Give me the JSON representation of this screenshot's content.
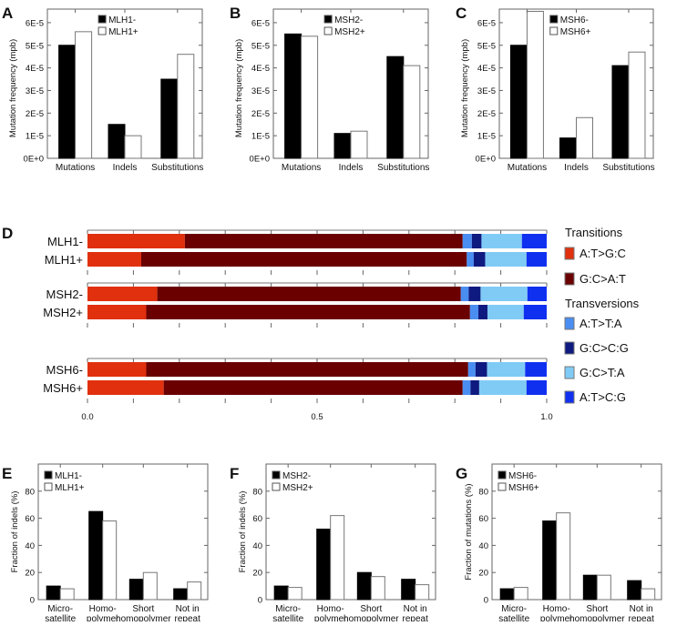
{
  "panel_labels": [
    "A",
    "B",
    "C",
    "D",
    "E",
    "F",
    "G"
  ],
  "chart_data": [
    {
      "panel": "A",
      "type": "bar",
      "ylabel": "Mutation frequency (mpb)",
      "categories": [
        "Mutations",
        "Indels",
        "Substitutions"
      ],
      "series": [
        {
          "name": "MLH1-",
          "color": "#000000",
          "values": [
            5e-05,
            1.5e-05,
            3.5e-05
          ]
        },
        {
          "name": "MLH1+",
          "color": "#ffffff",
          "values": [
            5.6e-05,
            1e-05,
            4.6e-05
          ]
        }
      ],
      "yticks": [
        "0E+0",
        "1E-5",
        "2E-5",
        "3E-5",
        "4E-5",
        "5E-5",
        "6E-5"
      ],
      "ylim": [
        0,
        6.6e-05
      ],
      "legend": "top-center"
    },
    {
      "panel": "B",
      "type": "bar",
      "ylabel": "Mutation frequency (mpb)",
      "categories": [
        "Mutations",
        "Indels",
        "Substitutions"
      ],
      "series": [
        {
          "name": "MSH2-",
          "color": "#000000",
          "values": [
            5.5e-05,
            1.1e-05,
            4.5e-05
          ]
        },
        {
          "name": "MSH2+",
          "color": "#ffffff",
          "values": [
            5.4e-05,
            1.2e-05,
            4.1e-05
          ]
        }
      ],
      "yticks": [
        "0E+0",
        "1E-5",
        "2E-5",
        "3E-5",
        "4E-5",
        "5E-5",
        "6E-5"
      ],
      "ylim": [
        0,
        6.6e-05
      ],
      "legend": "top-center"
    },
    {
      "panel": "C",
      "type": "bar",
      "ylabel": "Mutation frequency (mpb)",
      "categories": [
        "Mutations",
        "Indels",
        "Substitutions"
      ],
      "series": [
        {
          "name": "MSH6-",
          "color": "#000000",
          "values": [
            5e-05,
            9e-06,
            4.1e-05
          ]
        },
        {
          "name": "MSH6+",
          "color": "#ffffff",
          "values": [
            6.5e-05,
            1.8e-05,
            4.7e-05
          ]
        }
      ],
      "yticks": [
        "0E+0",
        "1E-5",
        "2E-5",
        "3E-5",
        "4E-5",
        "5E-5",
        "6E-5"
      ],
      "ylim": [
        0,
        6.6e-05
      ],
      "legend": "top-center"
    },
    {
      "panel": "D",
      "type": "stacked-bar-horizontal",
      "xlim": [
        0,
        1
      ],
      "xticks": [
        "0.0",
        "0.5",
        "1.0"
      ],
      "legend_groups": [
        {
          "title": "Transitions",
          "items": [
            0,
            1
          ]
        },
        {
          "title": "Transversions",
          "items": [
            2,
            3,
            4,
            5
          ]
        }
      ],
      "segments": [
        {
          "name": "A:T>G:C",
          "color": "#e0300e"
        },
        {
          "name": "G:C>A:T",
          "color": "#6a0000"
        },
        {
          "name": "A:T>T:A",
          "color": "#4a8ef2"
        },
        {
          "name": "G:C>C:G",
          "color": "#0f1a80"
        },
        {
          "name": "G:C>T:A",
          "color": "#80cbf5"
        },
        {
          "name": "A:T>C:G",
          "color": "#1030f0"
        }
      ],
      "rows": [
        {
          "name": "MLH1-",
          "values": [
            0.212,
            0.605,
            0.02,
            0.021,
            0.088,
            0.054
          ]
        },
        {
          "name": "MLH1+",
          "values": [
            0.117,
            0.709,
            0.015,
            0.025,
            0.09,
            0.044
          ]
        },
        {
          "name": "MSH2-",
          "values": [
            0.152,
            0.661,
            0.017,
            0.026,
            0.102,
            0.042
          ]
        },
        {
          "name": "MSH2+",
          "values": [
            0.128,
            0.705,
            0.018,
            0.02,
            0.079,
            0.05
          ]
        },
        {
          "name": "MSH6-",
          "values": [
            0.128,
            0.701,
            0.016,
            0.025,
            0.083,
            0.047
          ]
        },
        {
          "name": "MSH6+",
          "values": [
            0.166,
            0.651,
            0.017,
            0.019,
            0.103,
            0.044
          ]
        }
      ]
    },
    {
      "panel": "E",
      "type": "bar",
      "ylabel": "Fraction of indels (%)",
      "categories": [
        "Micro-\nsatellite",
        "Homo-\npolymer",
        "Short\nhomopolymer",
        "Not in\nrepeat"
      ],
      "series": [
        {
          "name": "MLH1-",
          "color": "#000000",
          "values": [
            10,
            65,
            15,
            8
          ]
        },
        {
          "name": "MLH1+",
          "color": "#ffffff",
          "values": [
            8,
            58,
            20,
            13
          ]
        }
      ],
      "yticks": [
        "0",
        "20",
        "40",
        "60",
        "80"
      ],
      "ylim": [
        0,
        100
      ],
      "legend": "top-left"
    },
    {
      "panel": "F",
      "type": "bar",
      "ylabel": "Fraction of indels (%)",
      "categories": [
        "Micro-\nsatellite",
        "Homo-\npolymer",
        "Short\nhomopolymer",
        "Not in\nrepeat"
      ],
      "series": [
        {
          "name": "MSH2-",
          "color": "#000000",
          "values": [
            10,
            52,
            20,
            15
          ]
        },
        {
          "name": "MSH2+",
          "color": "#ffffff",
          "values": [
            9,
            62,
            17,
            11
          ]
        }
      ],
      "yticks": [
        "0",
        "20",
        "40",
        "60",
        "80"
      ],
      "ylim": [
        0,
        100
      ],
      "legend": "top-left"
    },
    {
      "panel": "G",
      "type": "bar",
      "ylabel": "Fraction of mutations (%)",
      "categories": [
        "Micro-\nsatellite",
        "Homo-\npolymer",
        "Short\nhomopolymer",
        "Not in\nrepeat"
      ],
      "series": [
        {
          "name": "MSH6-",
          "color": "#000000",
          "values": [
            8,
            58,
            18,
            14
          ]
        },
        {
          "name": "MSH6+",
          "color": "#ffffff",
          "values": [
            9,
            64,
            18,
            8
          ]
        }
      ],
      "yticks": [
        "0",
        "20",
        "40",
        "60",
        "80"
      ],
      "ylim": [
        0,
        100
      ],
      "legend": "top-left"
    }
  ]
}
